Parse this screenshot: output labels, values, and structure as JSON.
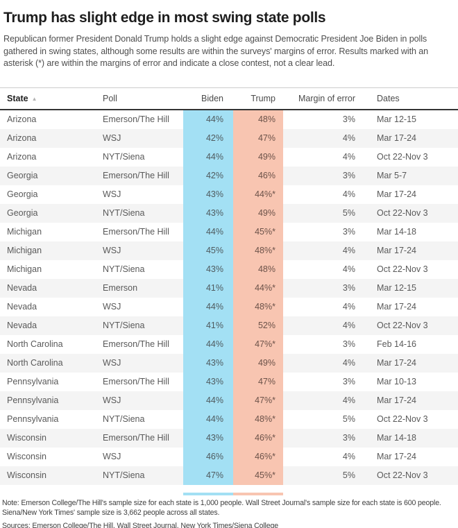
{
  "header": {
    "title": "Trump has slight edge in most swing state polls",
    "subtitle": "Republican former President Donald Trump holds a slight edge against Democratic President Joe Biden in polls gathered in swing states, although some results are within the surveys' margins of error. Results marked with an asterisk (*) are within the margins of error and indicate a close contest, not a clear lead."
  },
  "icons": {
    "sort_ascending": "▲"
  },
  "colors": {
    "biden_band": "#a3e0f4",
    "trump_band": "#f8c5b1",
    "alt_row": "#f4f4f4",
    "header_rule": "#333333"
  },
  "chart_data": {
    "type": "table",
    "title": "Trump has slight edge in most swing state polls",
    "columns": [
      "State",
      "Poll",
      "Biden",
      "Trump",
      "Margin of error",
      "Dates"
    ],
    "column_alignment": [
      "left",
      "left",
      "right",
      "right",
      "right",
      "left"
    ],
    "sorted_column": "State",
    "sort_direction": "ascending",
    "highlight_columns": {
      "Biden": "#a3e0f4",
      "Trump": "#f8c5b1"
    },
    "asterisk_meaning": "result within the margin of error",
    "rows": [
      [
        "Arizona",
        "Emerson/The Hill",
        "44%",
        "48%",
        "3%",
        "Mar 12-15"
      ],
      [
        "Arizona",
        "WSJ",
        "42%",
        "47%",
        "4%",
        "Mar 17-24"
      ],
      [
        "Arizona",
        "NYT/Siena",
        "44%",
        "49%",
        "4%",
        "Oct 22-Nov 3"
      ],
      [
        "Georgia",
        "Emerson/The Hill",
        "42%",
        "46%",
        "3%",
        "Mar 5-7"
      ],
      [
        "Georgia",
        "WSJ",
        "43%",
        "44%*",
        "4%",
        "Mar 17-24"
      ],
      [
        "Georgia",
        "NYT/Siena",
        "43%",
        "49%",
        "5%",
        "Oct 22-Nov 3"
      ],
      [
        "Michigan",
        "Emerson/The Hill",
        "44%",
        "45%*",
        "3%",
        "Mar 14-18"
      ],
      [
        "Michigan",
        "WSJ",
        "45%",
        "48%*",
        "4%",
        "Mar 17-24"
      ],
      [
        "Michigan",
        "NYT/Siena",
        "43%",
        "48%",
        "4%",
        "Oct 22-Nov 3"
      ],
      [
        "Nevada",
        "Emerson",
        "41%",
        "44%*",
        "3%",
        "Mar 12-15"
      ],
      [
        "Nevada",
        "WSJ",
        "44%",
        "48%*",
        "4%",
        "Mar 17-24"
      ],
      [
        "Nevada",
        "NYT/Siena",
        "41%",
        "52%",
        "4%",
        "Oct 22-Nov 3"
      ],
      [
        "North Carolina",
        "Emerson/The Hill",
        "44%",
        "47%*",
        "3%",
        "Feb 14-16"
      ],
      [
        "North Carolina",
        "WSJ",
        "43%",
        "49%",
        "4%",
        "Mar 17-24"
      ],
      [
        "Pennsylvania",
        "Emerson/The Hill",
        "43%",
        "47%",
        "3%",
        "Mar 10-13"
      ],
      [
        "Pennsylvania",
        "WSJ",
        "44%",
        "47%*",
        "4%",
        "Mar 17-24"
      ],
      [
        "Pennsylvania",
        "NYT/Siena",
        "44%",
        "48%*",
        "5%",
        "Oct 22-Nov 3"
      ],
      [
        "Wisconsin",
        "Emerson/The Hill",
        "43%",
        "46%*",
        "3%",
        "Mar 14-18"
      ],
      [
        "Wisconsin",
        "WSJ",
        "46%",
        "46%*",
        "4%",
        "Mar 17-24"
      ],
      [
        "Wisconsin",
        "NYT/Siena",
        "47%",
        "45%*",
        "5%",
        "Oct 22-Nov 3"
      ]
    ]
  },
  "footer": {
    "note_line1": "Note: Emerson College/The Hill's sample size for each state is 1,000 people. Wall Street Journal's sample size for each state is 600 people.",
    "note_line2": "Siena/New York Times' sample size is 3,662 people across all states.",
    "sources": "Sources: Emerson College/The Hill, Wall Street Journal, New York Times/Siena College"
  }
}
